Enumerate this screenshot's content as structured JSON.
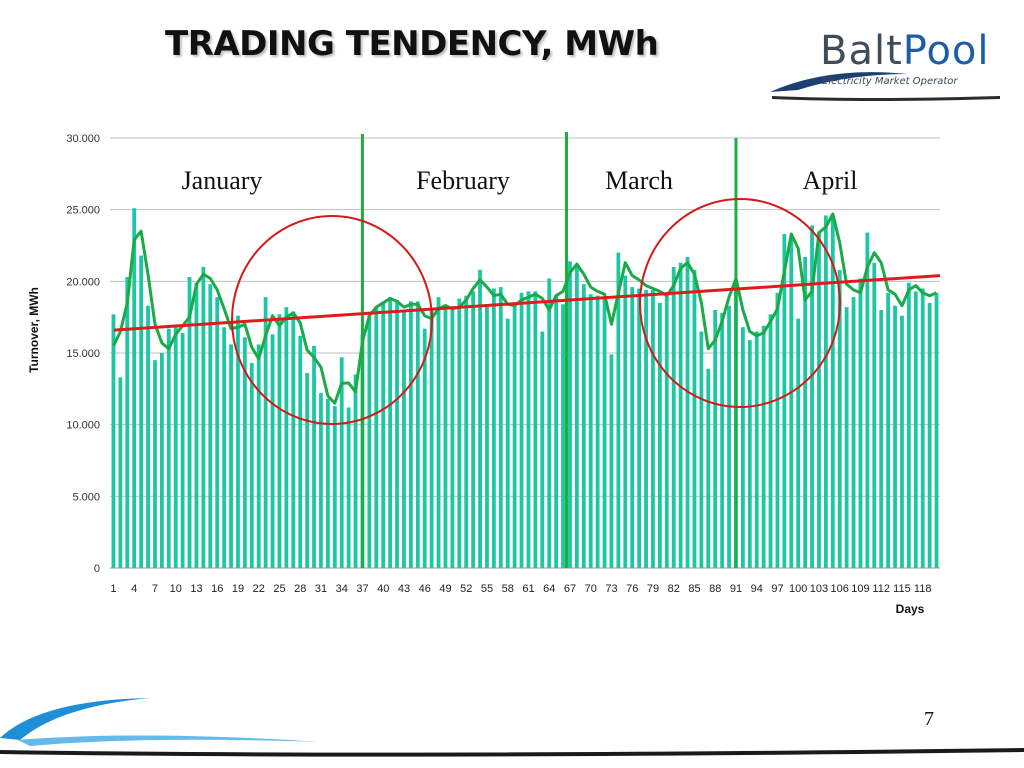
{
  "slide": {
    "title": "TRADING TENDENCY, MWh",
    "page_number": "7"
  },
  "logo": {
    "word_part1": "Balt",
    "word_part2": "Pool",
    "subtitle": "Electricity Market Operator"
  },
  "colors": {
    "bar": "#1ec7a3",
    "trend_line": "#e01b1b",
    "moving_average": "#1aaa46",
    "month_separator": "#1ab043",
    "highlight_circle": "#d21a1a",
    "grid": "#bfbfbf"
  },
  "chart_data": {
    "type": "bar",
    "title": "",
    "xlabel": "Days",
    "ylabel": "Turnover, MWh",
    "ylim": [
      0,
      30000
    ],
    "yticks": [
      "0",
      "5.000",
      "10.000",
      "15.000",
      "20.000",
      "25.000",
      "30.000"
    ],
    "ytick_values": [
      0,
      5000,
      10000,
      15000,
      20000,
      25000,
      30000
    ],
    "xtick_labels": [
      "1",
      "4",
      "7",
      "10",
      "13",
      "16",
      "19",
      "22",
      "25",
      "28",
      "31",
      "34",
      "37",
      "40",
      "43",
      "46",
      "49",
      "52",
      "55",
      "58",
      "61",
      "64",
      "67",
      "70",
      "73",
      "76",
      "79",
      "82",
      "85",
      "88",
      "91",
      "94",
      "97",
      "100",
      "103",
      "106",
      "109",
      "112",
      "115",
      "118"
    ],
    "grid": true,
    "days": 120,
    "series": [
      {
        "kind": "bar",
        "values": [
          17700,
          13300,
          20300,
          25100,
          21800,
          18300,
          14500,
          15000,
          16700,
          16900,
          16400,
          20300,
          19900,
          21000,
          19800,
          18900,
          16800,
          15600,
          17600,
          16100,
          14300,
          15600,
          18900,
          16300,
          17700,
          18200,
          17900,
          16200,
          13600,
          15500,
          12200,
          11800,
          11300,
          14700,
          11200,
          13500,
          16300,
          17600,
          18200,
          18500,
          18900,
          18700,
          17900,
          18600,
          18600,
          16700,
          18000,
          18900,
          18400,
          18100,
          18800,
          19000,
          19300,
          20800,
          18400,
          19500,
          19600,
          17400,
          18400,
          19200,
          19300,
          19300,
          16500,
          20200,
          19000,
          18400,
          21400,
          21100,
          19800,
          19100,
          19000,
          18900,
          14900,
          22000,
          20400,
          19600,
          19500,
          19400,
          19400,
          18500,
          19000,
          21000,
          21300,
          21700,
          20800,
          16500,
          13900,
          18000,
          17800,
          18300,
          20000,
          16800,
          15900,
          16500,
          16900,
          17700,
          19200,
          23300,
          23000,
          17400,
          21700,
          23900,
          23400,
          24600,
          24600,
          20800,
          18200,
          18900,
          20200,
          23400,
          21300,
          18000,
          19200,
          18300,
          17600,
          19900,
          19300,
          19500,
          18500,
          19200
        ]
      },
      {
        "kind": "moving_average",
        "values": [
          15500,
          16500,
          18500,
          22900,
          23500,
          20500,
          17000,
          15700,
          15300,
          16300,
          16900,
          17500,
          19800,
          20500,
          20200,
          19400,
          18100,
          16700,
          16800,
          17000,
          15400,
          14600,
          16200,
          17600,
          16900,
          17500,
          17800,
          17100,
          15200,
          14700,
          14000,
          12000,
          11500,
          12900,
          12900,
          12300,
          15800,
          17600,
          18200,
          18500,
          18800,
          18600,
          18200,
          18400,
          18400,
          17600,
          17400,
          18100,
          18300,
          18100,
          18200,
          18700,
          19500,
          20100,
          19600,
          19000,
          19100,
          18400,
          18300,
          18700,
          18900,
          19100,
          18800,
          18000,
          19000,
          19300,
          20600,
          21200,
          20500,
          19600,
          19300,
          19100,
          17000,
          19200,
          21300,
          20400,
          20100,
          19700,
          19500,
          19300,
          19000,
          19700,
          20900,
          21300,
          20500,
          18500,
          15300,
          15900,
          17200,
          18900,
          20200,
          18000,
          16500,
          16200,
          16400,
          17200,
          18100,
          20700,
          23300,
          22300,
          18700,
          19300,
          23400,
          23800,
          24700,
          22700,
          19800,
          19400,
          19200,
          21000,
          22000,
          21300,
          19400,
          19100,
          18300,
          19400,
          19700,
          19200,
          19000,
          19200
        ]
      },
      {
        "kind": "trend_line",
        "values": [
          16600,
          20400
        ]
      }
    ],
    "annotations": [
      {
        "type": "month_label",
        "text": "January"
      },
      {
        "type": "month_label",
        "text": "February"
      },
      {
        "type": "month_label",
        "text": "March"
      },
      {
        "type": "month_label",
        "text": "April"
      }
    ]
  }
}
